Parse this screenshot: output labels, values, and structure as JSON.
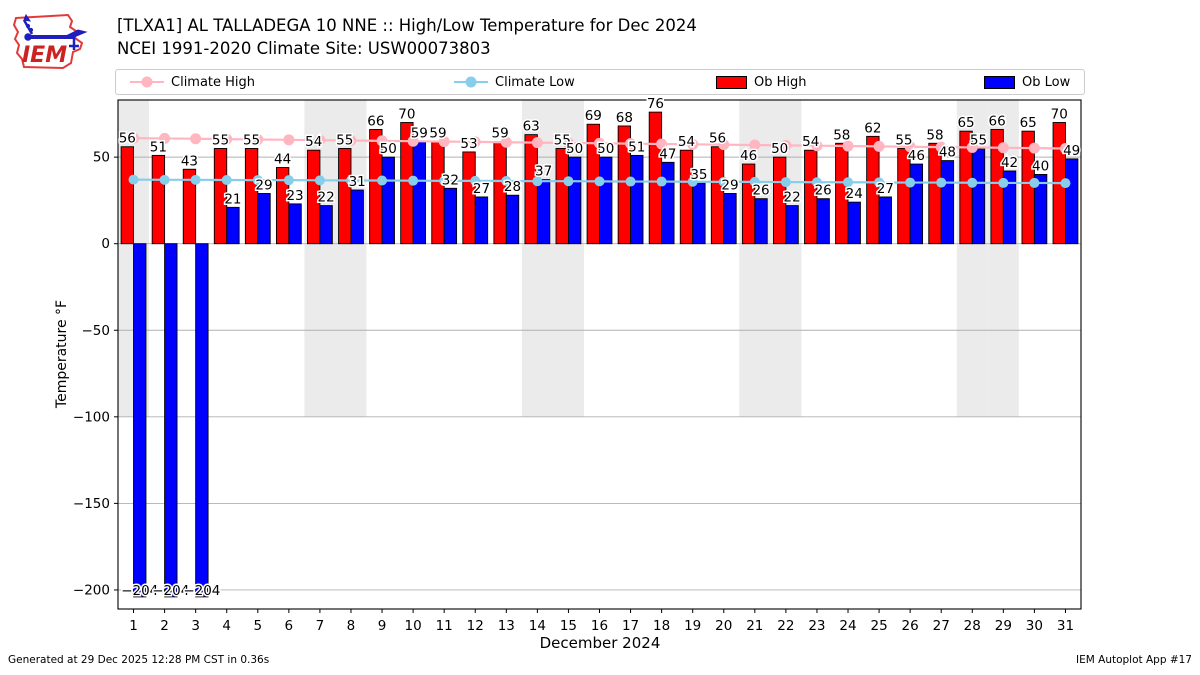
{
  "header": {
    "title_line1": "[TLXA1] AL TALLADEGA 10 NNE :: High/Low Temperature for Dec 2024",
    "title_line2": "NCEI 1991-2020 Climate Site: USW00073803"
  },
  "legend": {
    "items": [
      {
        "label": "Climate High",
        "handle": "line-marker",
        "color": "#ffb6c1"
      },
      {
        "label": "Climate Low",
        "handle": "line-marker",
        "color": "#87ceeb"
      },
      {
        "label": "Ob High",
        "handle": "patch",
        "color": "#ff0000"
      },
      {
        "label": "Ob Low",
        "handle": "patch",
        "color": "#0000ff"
      }
    ]
  },
  "footer": {
    "left": "Generated at 29 Dec 2025 12:28 PM CST in 0.36s",
    "right": "IEM Autoplot App #17"
  },
  "chart_data": {
    "type": "bar",
    "title": "[TLXA1] AL TALLADEGA 10 NNE :: High/Low Temperature for Dec 2024",
    "subtitle": "NCEI 1991-2020 Climate Site: USW00073803",
    "xlabel": "December 2024",
    "ylabel": "Temperature °F",
    "x": [
      1,
      2,
      3,
      4,
      5,
      6,
      7,
      8,
      9,
      10,
      11,
      12,
      13,
      14,
      15,
      16,
      17,
      18,
      19,
      20,
      21,
      22,
      23,
      24,
      25,
      26,
      27,
      28,
      29,
      30,
      31
    ],
    "ylim": [
      -211,
      83
    ],
    "yticks": [
      50,
      0,
      -50,
      -100,
      -150,
      -200
    ],
    "grid": "horizontal",
    "legend_position": "top",
    "weekend_shading": {
      "days": [
        1,
        7,
        8,
        14,
        15,
        21,
        22,
        28,
        29
      ],
      "color": "#ebebeb",
      "bottom_value": -100
    },
    "series": [
      {
        "name": "Climate High",
        "type": "line",
        "color": "#ffb6c1",
        "marker_r": 5.5,
        "values": [
          61.0,
          60.8,
          60.6,
          60.4,
          60.2,
          60.0,
          59.8,
          59.6,
          59.4,
          59.2,
          59.0,
          58.8,
          58.6,
          58.4,
          58.2,
          58.0,
          57.8,
          57.6,
          57.4,
          57.2,
          57.0,
          56.8,
          56.6,
          56.4,
          56.2,
          56.0,
          55.8,
          55.6,
          55.4,
          55.2,
          55.0
        ]
      },
      {
        "name": "Climate Low",
        "type": "line",
        "color": "#87ceeb",
        "marker_r": 5,
        "values": [
          37.0,
          36.9,
          36.9,
          36.8,
          36.7,
          36.7,
          36.6,
          36.5,
          36.5,
          36.4,
          36.3,
          36.3,
          36.2,
          36.1,
          36.1,
          36.0,
          35.9,
          35.9,
          35.8,
          35.7,
          35.7,
          35.6,
          35.5,
          35.5,
          35.4,
          35.3,
          35.3,
          35.2,
          35.1,
          35.1,
          35.0
        ]
      },
      {
        "name": "Ob High",
        "type": "bar",
        "color": "#ff0000",
        "labels": true,
        "values": [
          56,
          51,
          43,
          55,
          55,
          44,
          54,
          55,
          66,
          70,
          59,
          53,
          59,
          63,
          55,
          69,
          68,
          76,
          54,
          56,
          46,
          50,
          54,
          58,
          62,
          55,
          58,
          65,
          66,
          65,
          70
        ]
      },
      {
        "name": "Ob Low",
        "type": "bar",
        "color": "#0000ff",
        "labels": true,
        "values": [
          -204,
          -204,
          -204,
          21,
          29,
          23,
          22,
          31,
          50,
          59,
          32,
          27,
          28,
          37,
          50,
          50,
          51,
          47,
          35,
          29,
          26,
          22,
          26,
          24,
          27,
          46,
          48,
          55,
          42,
          40,
          49
        ]
      }
    ]
  }
}
